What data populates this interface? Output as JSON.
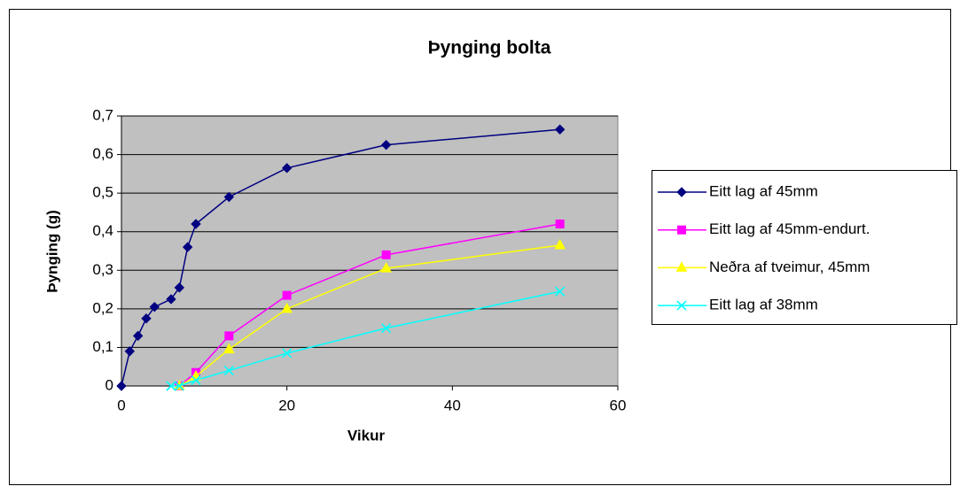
{
  "chart_data": {
    "type": "line",
    "title": "Þynging bolta",
    "xlabel": "Vikur",
    "ylabel": "Þynging (g)",
    "xlim": [
      0,
      60
    ],
    "xticks": [
      0,
      20,
      40,
      60
    ],
    "ylim": [
      0,
      0.7
    ],
    "yticks": [
      0,
      {
        "value": 0.1,
        "label": "0,1"
      },
      {
        "value": 0.2,
        "label": "0,2"
      },
      {
        "value": 0.3,
        "label": "0,3"
      },
      {
        "value": 0.4,
        "label": "0,4"
      },
      {
        "value": 0.5,
        "label": "0,5"
      },
      {
        "value": 0.6,
        "label": "0,6"
      },
      {
        "value": 0.7,
        "label": "0,7"
      }
    ],
    "grid": true,
    "legend": "right",
    "series": [
      {
        "name": "Eitt lag af 45mm",
        "color": "#000080",
        "marker": "diamond",
        "x": [
          0,
          1,
          2,
          3,
          4,
          6,
          7,
          8,
          9,
          13,
          20,
          32,
          53
        ],
        "values": [
          0,
          0.09,
          0.13,
          0.175,
          0.205,
          0.225,
          0.255,
          0.36,
          0.42,
          0.49,
          0.565,
          0.625,
          0.665
        ]
      },
      {
        "name": "Eitt lag af 45mm-endurt.",
        "color": "#ff00ff",
        "marker": "square",
        "x": [
          7,
          9,
          13,
          20,
          32,
          53
        ],
        "values": [
          0,
          0.035,
          0.13,
          0.235,
          0.34,
          0.42
        ]
      },
      {
        "name": "Neðra af tveimur, 45mm",
        "color": "#ffff00",
        "marker": "triangle",
        "x": [
          7,
          9,
          13,
          20,
          32,
          53
        ],
        "values": [
          0,
          0.025,
          0.095,
          0.2,
          0.305,
          0.365
        ]
      },
      {
        "name": "Eitt lag af 38mm",
        "color": "#00ffff",
        "marker": "x",
        "x": [
          6,
          7,
          9,
          13,
          20,
          32,
          53
        ],
        "values": [
          0,
          0,
          0.015,
          0.04,
          0.085,
          0.15,
          0.245
        ]
      }
    ]
  }
}
